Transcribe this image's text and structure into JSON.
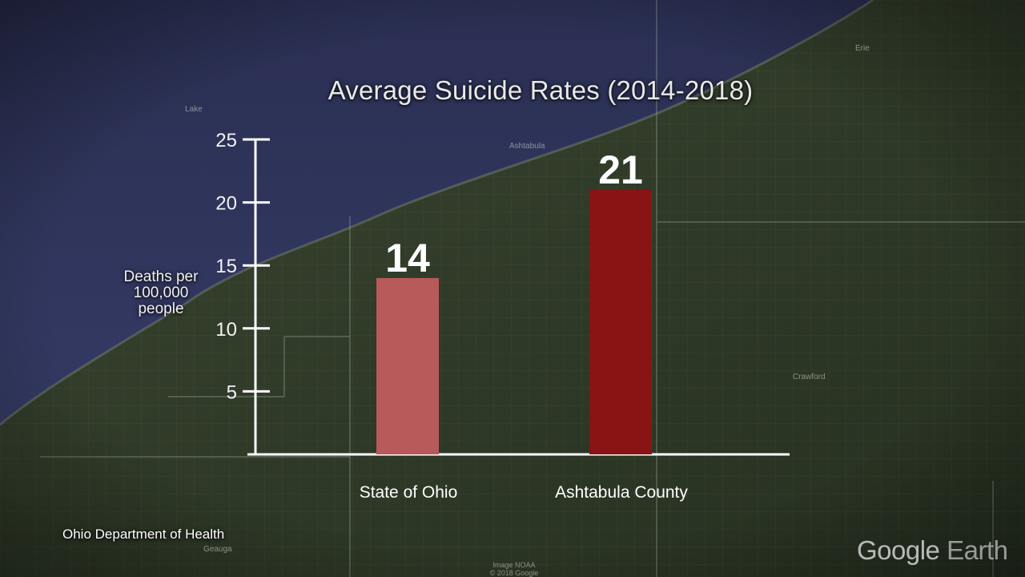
{
  "chart_data": {
    "type": "bar",
    "title": "Average Suicide Rates (2014-2018)",
    "ylabel_lines": [
      "Deaths per",
      "100,000",
      "people"
    ],
    "categories": [
      "State of Ohio",
      "Ashtabula County"
    ],
    "values": [
      14,
      21
    ],
    "value_labels": [
      "14",
      "21"
    ],
    "yticks": [
      5,
      10,
      15,
      20,
      25
    ],
    "ylim": [
      0,
      25
    ],
    "bar_colors": [
      "#b85a5a",
      "#8a1414"
    ],
    "grid": false,
    "legend": "none"
  },
  "source_note": "Ohio Department of Health",
  "map_labels": {
    "lake": "Lake",
    "ashtabula": "Ashtabula",
    "erie": "Erie",
    "crawford": "Crawford",
    "geauga": "Geauga",
    "credit_line1": "Image NOAA",
    "credit_line2": "© 2018 Google"
  },
  "watermark": {
    "word1": "Google",
    "word2": "Earth"
  }
}
